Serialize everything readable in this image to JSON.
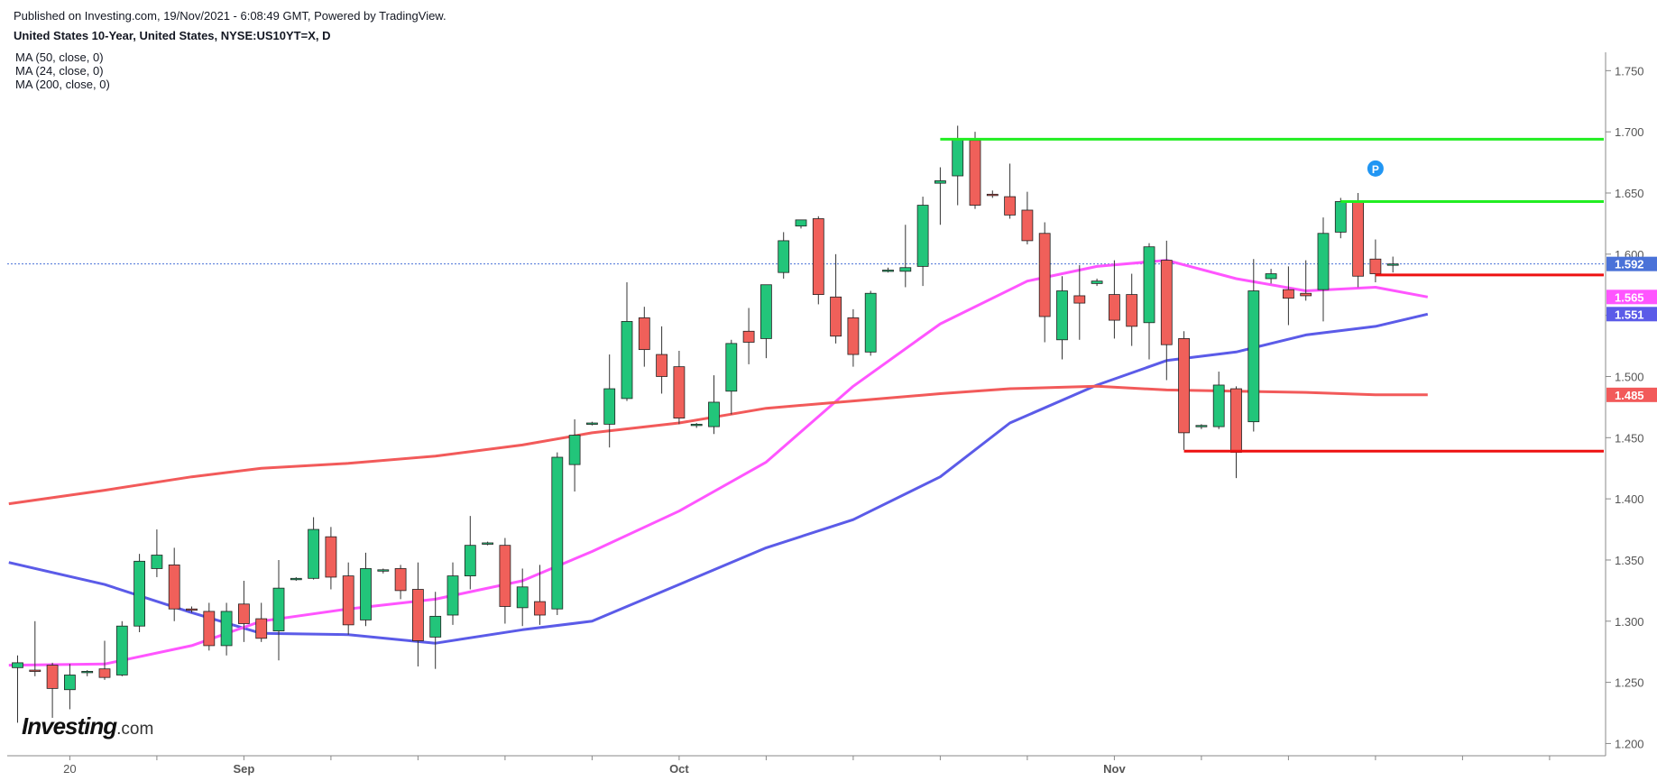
{
  "header": {
    "published": "Published on Investing.com, 19/Nov/2021 - 6:08:49 GMT, Powered by TradingView.",
    "symbol": "United States 10-Year, United States, NYSE:US10YT=X, D"
  },
  "legend": [
    "MA (50, close, 0)",
    "MA (24, close, 0)",
    "MA (200, close, 0)"
  ],
  "brand": {
    "name": "Investing",
    "suffix": ".com"
  },
  "colors": {
    "up": "#22c57a",
    "down": "#f0605a",
    "ma50": "#5b5be8",
    "ma24": "#ff55ff",
    "ma200": "#f25a5a",
    "support": "#ee1111",
    "resistance": "#22ee22",
    "lastPrice": "#4a72d8",
    "axisText": "#555555"
  },
  "chart_data": {
    "type": "candlestick",
    "title": "United States 10-Year, United States, NYSE:US10YT=X, D",
    "ylim": [
      1.19,
      1.765
    ],
    "y_ticks": [
      "1.750",
      "1.700",
      "1.650",
      "1.600",
      "1.550",
      "1.500",
      "1.450",
      "1.400",
      "1.350",
      "1.300",
      "1.250",
      "1.200"
    ],
    "x_labels": [
      {
        "index": 3,
        "label": "20"
      },
      {
        "index": 13,
        "label": "Sep"
      },
      {
        "index": 38,
        "label": "Oct"
      },
      {
        "index": 63,
        "label": "Nov"
      }
    ],
    "candles": [
      {
        "o": 1.262,
        "h": 1.272,
        "l": 1.217,
        "c": 1.266
      },
      {
        "o": 1.26,
        "h": 1.3,
        "l": 1.255,
        "c": 1.259
      },
      {
        "o": 1.264,
        "h": 1.266,
        "l": 1.221,
        "c": 1.245
      },
      {
        "o": 1.244,
        "h": 1.265,
        "l": 1.228,
        "c": 1.256
      },
      {
        "o": 1.258,
        "h": 1.26,
        "l": 1.255,
        "c": 1.259
      },
      {
        "o": 1.261,
        "h": 1.284,
        "l": 1.252,
        "c": 1.254
      },
      {
        "o": 1.256,
        "h": 1.3,
        "l": 1.255,
        "c": 1.296
      },
      {
        "o": 1.296,
        "h": 1.355,
        "l": 1.291,
        "c": 1.349
      },
      {
        "o": 1.343,
        "h": 1.375,
        "l": 1.336,
        "c": 1.354
      },
      {
        "o": 1.346,
        "h": 1.36,
        "l": 1.3,
        "c": 1.31
      },
      {
        "o": 1.31,
        "h": 1.312,
        "l": 1.307,
        "c": 1.309
      },
      {
        "o": 1.308,
        "h": 1.315,
        "l": 1.276,
        "c": 1.28
      },
      {
        "o": 1.28,
        "h": 1.315,
        "l": 1.272,
        "c": 1.308
      },
      {
        "o": 1.314,
        "h": 1.333,
        "l": 1.283,
        "c": 1.298
      },
      {
        "o": 1.302,
        "h": 1.315,
        "l": 1.283,
        "c": 1.286
      },
      {
        "o": 1.292,
        "h": 1.35,
        "l": 1.268,
        "c": 1.327
      },
      {
        "o": 1.334,
        "h": 1.336,
        "l": 1.333,
        "c": 1.335
      },
      {
        "o": 1.335,
        "h": 1.385,
        "l": 1.334,
        "c": 1.375
      },
      {
        "o": 1.369,
        "h": 1.377,
        "l": 1.326,
        "c": 1.336
      },
      {
        "o": 1.337,
        "h": 1.348,
        "l": 1.289,
        "c": 1.297
      },
      {
        "o": 1.301,
        "h": 1.356,
        "l": 1.296,
        "c": 1.343
      },
      {
        "o": 1.341,
        "h": 1.343,
        "l": 1.339,
        "c": 1.342
      },
      {
        "o": 1.343,
        "h": 1.346,
        "l": 1.318,
        "c": 1.325
      },
      {
        "o": 1.326,
        "h": 1.348,
        "l": 1.263,
        "c": 1.284
      },
      {
        "o": 1.287,
        "h": 1.324,
        "l": 1.261,
        "c": 1.304
      },
      {
        "o": 1.305,
        "h": 1.348,
        "l": 1.297,
        "c": 1.337
      },
      {
        "o": 1.337,
        "h": 1.386,
        "l": 1.326,
        "c": 1.362
      },
      {
        "o": 1.363,
        "h": 1.365,
        "l": 1.362,
        "c": 1.364
      },
      {
        "o": 1.362,
        "h": 1.368,
        "l": 1.298,
        "c": 1.312
      },
      {
        "o": 1.311,
        "h": 1.343,
        "l": 1.296,
        "c": 1.328
      },
      {
        "o": 1.316,
        "h": 1.346,
        "l": 1.297,
        "c": 1.305
      },
      {
        "o": 1.31,
        "h": 1.438,
        "l": 1.305,
        "c": 1.434
      },
      {
        "o": 1.428,
        "h": 1.465,
        "l": 1.406,
        "c": 1.452
      },
      {
        "o": 1.461,
        "h": 1.463,
        "l": 1.46,
        "c": 1.462
      },
      {
        "o": 1.461,
        "h": 1.518,
        "l": 1.442,
        "c": 1.49
      },
      {
        "o": 1.482,
        "h": 1.577,
        "l": 1.48,
        "c": 1.545
      },
      {
        "o": 1.548,
        "h": 1.557,
        "l": 1.508,
        "c": 1.522
      },
      {
        "o": 1.518,
        "h": 1.541,
        "l": 1.486,
        "c": 1.5
      },
      {
        "o": 1.508,
        "h": 1.521,
        "l": 1.461,
        "c": 1.466
      },
      {
        "o": 1.46,
        "h": 1.462,
        "l": 1.458,
        "c": 1.461
      },
      {
        "o": 1.459,
        "h": 1.501,
        "l": 1.453,
        "c": 1.479
      },
      {
        "o": 1.488,
        "h": 1.53,
        "l": 1.469,
        "c": 1.527
      },
      {
        "o": 1.537,
        "h": 1.556,
        "l": 1.51,
        "c": 1.528
      },
      {
        "o": 1.531,
        "h": 1.571,
        "l": 1.515,
        "c": 1.575
      },
      {
        "o": 1.585,
        "h": 1.618,
        "l": 1.58,
        "c": 1.611
      },
      {
        "o": 1.623,
        "h": 1.626,
        "l": 1.621,
        "c": 1.628
      },
      {
        "o": 1.629,
        "h": 1.631,
        "l": 1.559,
        "c": 1.567
      },
      {
        "o": 1.565,
        "h": 1.6,
        "l": 1.527,
        "c": 1.533
      },
      {
        "o": 1.548,
        "h": 1.555,
        "l": 1.508,
        "c": 1.518
      },
      {
        "o": 1.52,
        "h": 1.57,
        "l": 1.517,
        "c": 1.568
      },
      {
        "o": 1.587,
        "h": 1.589,
        "l": 1.585,
        "c": 1.587
      },
      {
        "o": 1.586,
        "h": 1.624,
        "l": 1.573,
        "c": 1.589
      },
      {
        "o": 1.59,
        "h": 1.647,
        "l": 1.574,
        "c": 1.64
      },
      {
        "o": 1.658,
        "h": 1.671,
        "l": 1.624,
        "c": 1.66
      },
      {
        "o": 1.664,
        "h": 1.705,
        "l": 1.64,
        "c": 1.694
      },
      {
        "o": 1.693,
        "h": 1.7,
        "l": 1.637,
        "c": 1.64
      },
      {
        "o": 1.649,
        "h": 1.652,
        "l": 1.646,
        "c": 1.648
      },
      {
        "o": 1.647,
        "h": 1.674,
        "l": 1.629,
        "c": 1.632
      },
      {
        "o": 1.636,
        "h": 1.651,
        "l": 1.608,
        "c": 1.611
      },
      {
        "o": 1.617,
        "h": 1.626,
        "l": 1.528,
        "c": 1.549
      },
      {
        "o": 1.53,
        "h": 1.582,
        "l": 1.514,
        "c": 1.57
      },
      {
        "o": 1.566,
        "h": 1.591,
        "l": 1.53,
        "c": 1.56
      },
      {
        "o": 1.576,
        "h": 1.58,
        "l": 1.574,
        "c": 1.578
      },
      {
        "o": 1.567,
        "h": 1.595,
        "l": 1.531,
        "c": 1.546
      },
      {
        "o": 1.567,
        "h": 1.584,
        "l": 1.525,
        "c": 1.541
      },
      {
        "o": 1.544,
        "h": 1.609,
        "l": 1.514,
        "c": 1.606
      },
      {
        "o": 1.595,
        "h": 1.611,
        "l": 1.497,
        "c": 1.526
      },
      {
        "o": 1.531,
        "h": 1.537,
        "l": 1.44,
        "c": 1.454
      },
      {
        "o": 1.459,
        "h": 1.461,
        "l": 1.457,
        "c": 1.46
      },
      {
        "o": 1.459,
        "h": 1.504,
        "l": 1.457,
        "c": 1.493
      },
      {
        "o": 1.49,
        "h": 1.492,
        "l": 1.417,
        "c": 1.438
      },
      {
        "o": 1.463,
        "h": 1.596,
        "l": 1.455,
        "c": 1.57
      },
      {
        "o": 1.58,
        "h": 1.588,
        "l": 1.576,
        "c": 1.584
      },
      {
        "o": 1.571,
        "h": 1.59,
        "l": 1.542,
        "c": 1.564
      },
      {
        "o": 1.568,
        "h": 1.595,
        "l": 1.562,
        "c": 1.566
      },
      {
        "o": 1.571,
        "h": 1.63,
        "l": 1.545,
        "c": 1.617
      },
      {
        "o": 1.618,
        "h": 1.646,
        "l": 1.613,
        "c": 1.643
      },
      {
        "o": 1.643,
        "h": 1.65,
        "l": 1.573,
        "c": 1.582
      },
      {
        "o": 1.596,
        "h": 1.612,
        "l": 1.577,
        "c": 1.584
      },
      {
        "o": 1.591,
        "h": 1.598,
        "l": 1.585,
        "c": 1.592
      }
    ],
    "series": [
      {
        "name": "MA (50, close, 0)",
        "values": [
          [
            -0.5,
            1.348
          ],
          [
            5,
            1.33
          ],
          [
            10,
            1.307
          ],
          [
            14,
            1.29
          ],
          [
            19,
            1.289
          ],
          [
            24,
            1.282
          ],
          [
            29,
            1.293
          ],
          [
            33,
            1.3
          ],
          [
            38,
            1.33
          ],
          [
            43,
            1.36
          ],
          [
            48,
            1.383
          ],
          [
            53,
            1.418
          ],
          [
            57,
            1.462
          ],
          [
            62,
            1.493
          ],
          [
            66,
            1.513
          ],
          [
            70,
            1.52
          ],
          [
            74,
            1.534
          ],
          [
            78,
            1.541
          ],
          [
            81,
            1.551
          ]
        ]
      },
      {
        "name": "MA (24, close, 0)",
        "values": [
          [
            -0.5,
            1.264
          ],
          [
            5,
            1.265
          ],
          [
            10,
            1.28
          ],
          [
            14,
            1.3
          ],
          [
            19,
            1.31
          ],
          [
            24,
            1.318
          ],
          [
            29,
            1.333
          ],
          [
            33,
            1.357
          ],
          [
            38,
            1.39
          ],
          [
            43,
            1.43
          ],
          [
            48,
            1.492
          ],
          [
            53,
            1.543
          ],
          [
            58,
            1.578
          ],
          [
            62,
            1.59
          ],
          [
            66,
            1.595
          ],
          [
            70,
            1.58
          ],
          [
            74,
            1.57
          ],
          [
            78,
            1.573
          ],
          [
            81,
            1.565
          ]
        ]
      },
      {
        "name": "MA (200, close, 0)",
        "values": [
          [
            -0.5,
            1.396
          ],
          [
            5,
            1.407
          ],
          [
            10,
            1.418
          ],
          [
            14,
            1.425
          ],
          [
            19,
            1.429
          ],
          [
            24,
            1.435
          ],
          [
            29,
            1.444
          ],
          [
            33,
            1.454
          ],
          [
            38,
            1.462
          ],
          [
            43,
            1.474
          ],
          [
            48,
            1.48
          ],
          [
            53,
            1.486
          ],
          [
            57,
            1.49
          ],
          [
            62,
            1.492
          ],
          [
            66,
            1.489
          ],
          [
            70,
            1.488
          ],
          [
            74,
            1.487
          ],
          [
            78,
            1.485
          ],
          [
            81,
            1.485
          ]
        ]
      }
    ],
    "horizontal_lines": [
      {
        "value": 1.694,
        "from_index": 53,
        "to_index": 92,
        "color": "resistance"
      },
      {
        "value": 1.643,
        "from_index": 76,
        "to_index": 94,
        "color": "resistance"
      },
      {
        "value": 1.583,
        "from_index": 78,
        "to_index": 94,
        "color": "support"
      },
      {
        "value": 1.439,
        "from_index": 67,
        "to_index": 94,
        "color": "support"
      }
    ],
    "price_labels": [
      {
        "value": 1.592,
        "text": "1.592",
        "color": "lastPrice"
      },
      {
        "value": 1.565,
        "text": "1.565",
        "color": "ma24"
      },
      {
        "value": 1.551,
        "text": "1.551",
        "color": "ma50"
      },
      {
        "value": 1.485,
        "text": "1.485",
        "color": "ma200"
      }
    ],
    "last_price": 1.592,
    "marker": {
      "index": 78,
      "value": 1.67,
      "text": "P"
    }
  }
}
